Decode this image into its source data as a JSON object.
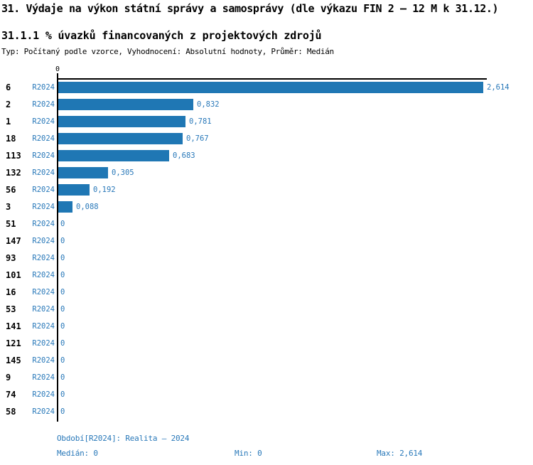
{
  "header": {
    "title": "31. Výdaje na výkon státní správy a samosprávy (dle výkazu FIN 2 – 12 M k 31.12.)",
    "subtitle": "31.1.1 % úvazků financovaných z projektových zdrojů",
    "meta": "Typ: Počítaný podle vzorce, Vyhodnocení: Absolutní hodnoty, Průměr: Medián"
  },
  "chart_data": {
    "type": "bar",
    "orientation": "horizontal",
    "title": "31.1.1 % úvazků financovaných z projektových zdrojů",
    "categories": [
      "6",
      "2",
      "1",
      "18",
      "113",
      "132",
      "56",
      "3",
      "51",
      "147",
      "93",
      "101",
      "16",
      "53",
      "141",
      "121",
      "145",
      "9",
      "74",
      "58"
    ],
    "series": [
      {
        "name": "R2024",
        "values": [
          2.614,
          0.832,
          0.781,
          0.767,
          0.683,
          0.305,
          0.192,
          0.088,
          0,
          0,
          0,
          0,
          0,
          0,
          0,
          0,
          0,
          0,
          0,
          0
        ]
      }
    ],
    "value_labels": [
      "2,614",
      "0,832",
      "0,781",
      "0,767",
      "0,683",
      "0,305",
      "0,192",
      "0,088",
      "0",
      "0",
      "0",
      "0",
      "0",
      "0",
      "0",
      "0",
      "0",
      "0",
      "0",
      "0"
    ],
    "xlim": [
      0,
      2.614
    ],
    "x_tick_labels": [
      "0"
    ],
    "grid": false,
    "legend": false,
    "bar_color": "#1f77b4"
  },
  "footer": {
    "period_line": "Období[R2024]: Realita – 2024",
    "median_label": "Medián: 0",
    "min_label": "Min: 0",
    "max_label": "Max: 2,614"
  },
  "colors": {
    "bar": "#1f77b4",
    "blue_text": "#2878b9",
    "axis": "#000000",
    "background": "#ffffff"
  }
}
